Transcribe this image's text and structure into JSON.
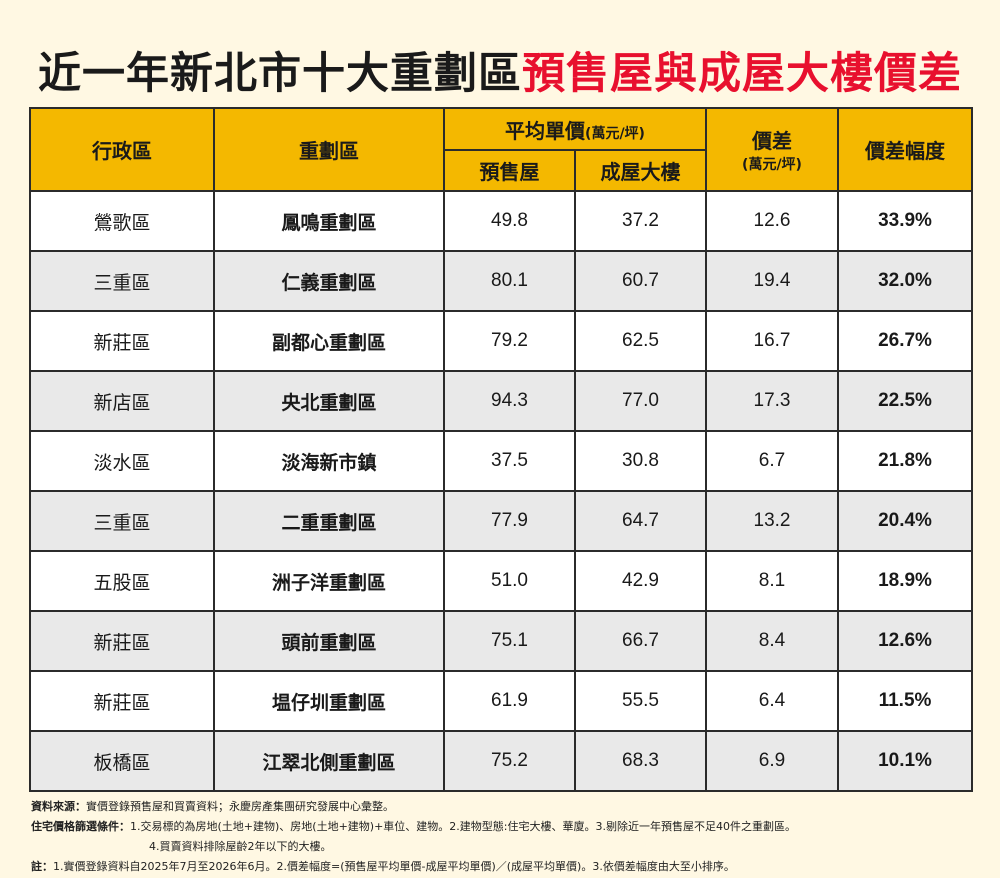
{
  "title": {
    "part1": "近一年新北市十大重劃區",
    "part2": "預售屋與成屋大樓價差"
  },
  "headers": {
    "district": "行政區",
    "zone": "重劃區",
    "avg_price": "平均單價",
    "avg_price_unit": "(萬元/坪)",
    "presale": "預售屋",
    "existing": "成屋大樓",
    "diff": "價差",
    "diff_unit": "(萬元/坪)",
    "diff_pct": "價差幅度"
  },
  "rows": [
    {
      "district": "鶯歌區",
      "zone": "鳳鳴重劃區",
      "presale": "49.8",
      "existing": "37.2",
      "diff": "12.6",
      "pct": "33.9%"
    },
    {
      "district": "三重區",
      "zone": "仁義重劃區",
      "presale": "80.1",
      "existing": "60.7",
      "diff": "19.4",
      "pct": "32.0%"
    },
    {
      "district": "新莊區",
      "zone": "副都心重劃區",
      "presale": "79.2",
      "existing": "62.5",
      "diff": "16.7",
      "pct": "26.7%"
    },
    {
      "district": "新店區",
      "zone": "央北重劃區",
      "presale": "94.3",
      "existing": "77.0",
      "diff": "17.3",
      "pct": "22.5%"
    },
    {
      "district": "淡水區",
      "zone": "淡海新市鎮",
      "presale": "37.5",
      "existing": "30.8",
      "diff": "6.7",
      "pct": "21.8%"
    },
    {
      "district": "三重區",
      "zone": "二重重劃區",
      "presale": "77.9",
      "existing": "64.7",
      "diff": "13.2",
      "pct": "20.4%"
    },
    {
      "district": "五股區",
      "zone": "洲子洋重劃區",
      "presale": "51.0",
      "existing": "42.9",
      "diff": "8.1",
      "pct": "18.9%"
    },
    {
      "district": "新莊區",
      "zone": "頭前重劃區",
      "presale": "75.1",
      "existing": "66.7",
      "diff": "8.4",
      "pct": "12.6%"
    },
    {
      "district": "新莊區",
      "zone": "塭仔圳重劃區",
      "presale": "61.9",
      "existing": "55.5",
      "diff": "6.4",
      "pct": "11.5%"
    },
    {
      "district": "板橋區",
      "zone": "江翠北側重劃區",
      "presale": "75.2",
      "existing": "68.3",
      "diff": "6.9",
      "pct": "10.1%"
    }
  ],
  "notes": {
    "source_label": "資料來源：",
    "source_text": "實價登錄預售屋和買賣資料；永慶房產集團研究發展中心彙整。",
    "criteria_label": "住宅價格篩選條件：",
    "criteria_text_1": "1.交易標的為房地(土地+建物)、房地(土地+建物)+車位、建物。2.建物型態:住宅大樓、華廈。3.剔除近一年預售屋不足40件之重劃區。",
    "criteria_text_2": "4.買賣資料排除屋齡2年以下的大樓。",
    "remark_label": "註：",
    "remark_text": "1.實價登錄資料自2025年7月至2026年6月。2.價差幅度=(預售屋平均單價-成屋平均單價)／(成屋平均單價)。3.依價差幅度由大至小排序。"
  }
}
